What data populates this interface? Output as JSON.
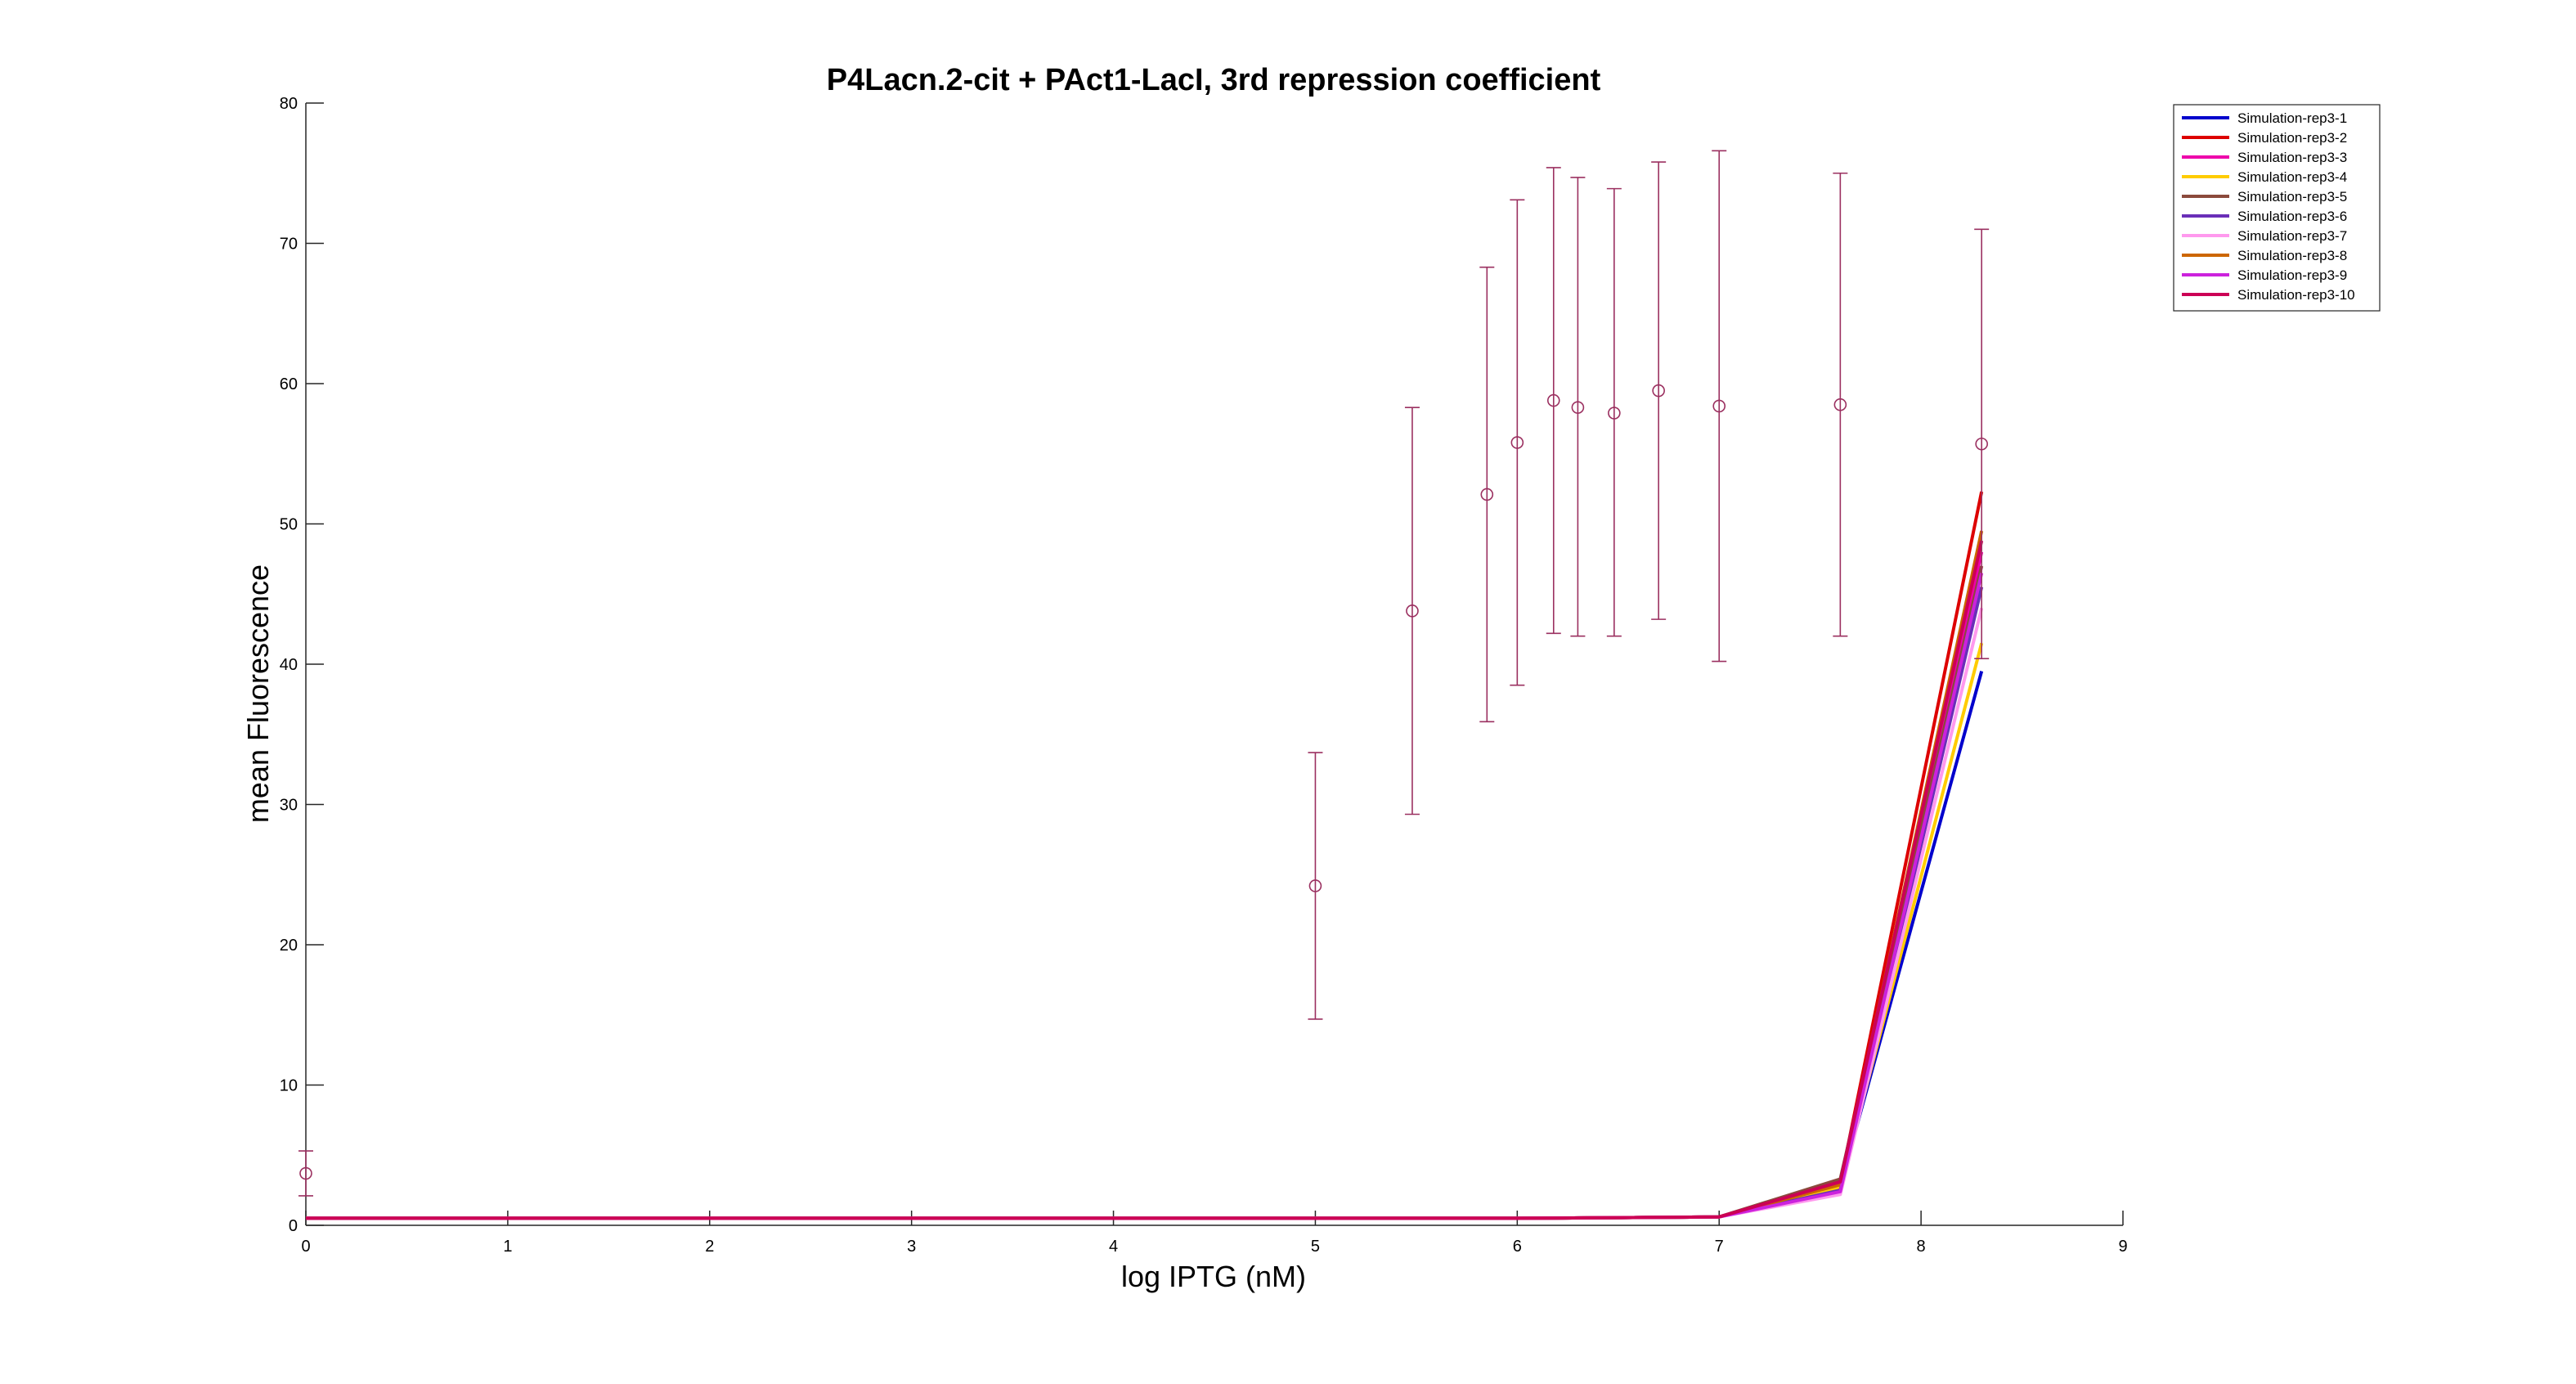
{
  "chart_data": {
    "type": "line",
    "title": "P4Lacn.2-cit + PAct1-LacI, 3rd repression coefficient",
    "xlabel": "log IPTG (nM)",
    "ylabel": "mean Fluorescence",
    "xlim": [
      0,
      9
    ],
    "ylim": [
      0,
      80
    ],
    "xticks": [
      "0",
      "1",
      "2",
      "3",
      "4",
      "5",
      "6",
      "7",
      "8",
      "9"
    ],
    "yticks": [
      "0",
      "10",
      "20",
      "30",
      "40",
      "50",
      "60",
      "70",
      "80"
    ],
    "grid": false,
    "legend_position": "top-right",
    "x": [
      0,
      1,
      2,
      3,
      4,
      5,
      6,
      7,
      7.6,
      8.3
    ],
    "series": [
      {
        "name": "Simulation-rep3-1",
        "color": "#0000cc",
        "values": [
          0.5,
          0.5,
          0.5,
          0.5,
          0.5,
          0.5,
          0.5,
          0.6,
          2.8,
          39.5
        ]
      },
      {
        "name": "Simulation-rep3-2",
        "color": "#dd0000",
        "values": [
          0.5,
          0.5,
          0.5,
          0.5,
          0.5,
          0.5,
          0.5,
          0.6,
          3.0,
          52.3
        ]
      },
      {
        "name": "Simulation-rep3-3",
        "color": "#ee00aa",
        "values": [
          0.5,
          0.5,
          0.5,
          0.5,
          0.5,
          0.5,
          0.5,
          0.6,
          2.6,
          48.0
        ]
      },
      {
        "name": "Simulation-rep3-4",
        "color": "#ffcc00",
        "values": [
          0.5,
          0.5,
          0.5,
          0.5,
          0.5,
          0.5,
          0.5,
          0.6,
          2.7,
          41.5
        ]
      },
      {
        "name": "Simulation-rep3-5",
        "color": "#8b4a3c",
        "values": [
          0.5,
          0.5,
          0.5,
          0.5,
          0.5,
          0.5,
          0.5,
          0.6,
          3.3,
          47.0
        ]
      },
      {
        "name": "Simulation-rep3-6",
        "color": "#6a2fb8",
        "values": [
          0.5,
          0.5,
          0.5,
          0.5,
          0.5,
          0.5,
          0.5,
          0.6,
          2.5,
          45.5
        ]
      },
      {
        "name": "Simulation-rep3-7",
        "color": "#ff99ee",
        "values": [
          0.5,
          0.5,
          0.5,
          0.5,
          0.5,
          0.5,
          0.5,
          0.6,
          2.2,
          44.0
        ]
      },
      {
        "name": "Simulation-rep3-8",
        "color": "#cc6600",
        "values": [
          0.5,
          0.5,
          0.5,
          0.5,
          0.5,
          0.5,
          0.5,
          0.6,
          2.9,
          49.5
        ]
      },
      {
        "name": "Simulation-rep3-9",
        "color": "#cc22dd",
        "values": [
          0.5,
          0.5,
          0.5,
          0.5,
          0.5,
          0.5,
          0.5,
          0.6,
          2.4,
          46.5
        ]
      },
      {
        "name": "Simulation-rep3-10",
        "color": "#cc0055",
        "values": [
          0.5,
          0.5,
          0.5,
          0.5,
          0.5,
          0.5,
          0.5,
          0.6,
          3.1,
          48.8
        ]
      }
    ],
    "experimental": {
      "color": "#9b3060",
      "points": [
        {
          "x": 0,
          "y": 3.7,
          "low": 2.1,
          "high": 5.3
        },
        {
          "x": 5.0,
          "y": 24.2,
          "low": 14.7,
          "high": 33.7
        },
        {
          "x": 5.48,
          "y": 43.8,
          "low": 29.3,
          "high": 58.3
        },
        {
          "x": 5.85,
          "y": 52.1,
          "low": 35.9,
          "high": 68.3
        },
        {
          "x": 6.0,
          "y": 55.8,
          "low": 38.5,
          "high": 73.1
        },
        {
          "x": 6.18,
          "y": 58.8,
          "low": 42.2,
          "high": 75.4
        },
        {
          "x": 6.3,
          "y": 58.3,
          "low": 42.0,
          "high": 74.7
        },
        {
          "x": 6.48,
          "y": 57.9,
          "low": 42.0,
          "high": 73.9
        },
        {
          "x": 6.7,
          "y": 59.5,
          "low": 43.2,
          "high": 75.8
        },
        {
          "x": 7.0,
          "y": 58.4,
          "low": 40.2,
          "high": 76.6
        },
        {
          "x": 7.6,
          "y": 58.5,
          "low": 42.0,
          "high": 75.0
        },
        {
          "x": 8.3,
          "y": 55.7,
          "low": 40.4,
          "high": 71.0
        }
      ]
    }
  }
}
